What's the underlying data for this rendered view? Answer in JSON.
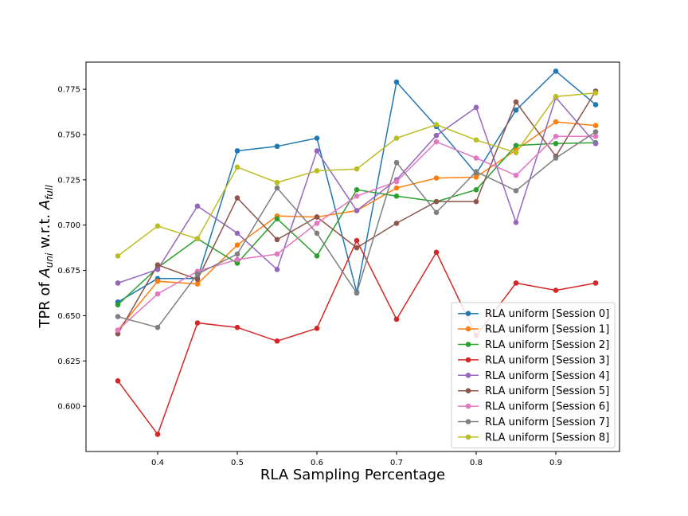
{
  "chart_data": {
    "type": "line",
    "xlabel": "RLA Sampling Percentage",
    "ylabel_prefix": "TPR of ",
    "ylabel_a1": "A",
    "ylabel_s1": "uni",
    "ylabel_mid": " w.r.t. ",
    "ylabel_a2": "A",
    "ylabel_s2": "full",
    "xlim": [
      0.31,
      0.98
    ],
    "ylim": [
      0.575,
      0.79
    ],
    "xticks": [
      0.4,
      0.5,
      0.6,
      0.7,
      0.8,
      0.9
    ],
    "xtick_labels": [
      "0.4",
      "0.5",
      "0.6",
      "0.7",
      "0.8",
      "0.9"
    ],
    "yticks": [
      0.6,
      0.625,
      0.65,
      0.675,
      0.7,
      0.725,
      0.75,
      0.775
    ],
    "ytick_labels": [
      "0.600",
      "0.625",
      "0.650",
      "0.675",
      "0.700",
      "0.725",
      "0.750",
      "0.775"
    ],
    "legend_position": "lower-right",
    "x": [
      0.35,
      0.4,
      0.45,
      0.5,
      0.55,
      0.6,
      0.65,
      0.7,
      0.75,
      0.8,
      0.85,
      0.9,
      0.95
    ],
    "series": [
      {
        "name": "RLA uniform [Session 0]",
        "color": "#1f77b4",
        "values": [
          0.6575,
          0.6705,
          0.6705,
          0.741,
          0.7435,
          0.748,
          0.663,
          0.779,
          0.7545,
          0.7285,
          0.7635,
          0.785,
          0.7665
        ]
      },
      {
        "name": "RLA uniform [Session 1]",
        "color": "#ff7f0e",
        "values": [
          0.642,
          0.669,
          0.6675,
          0.689,
          0.705,
          0.7045,
          0.708,
          0.7205,
          0.726,
          0.7265,
          0.7415,
          0.757,
          0.755
        ]
      },
      {
        "name": "RLA uniform [Session 2]",
        "color": "#2ca02c",
        "values": [
          0.656,
          0.6765,
          0.6925,
          0.679,
          0.7035,
          0.683,
          0.7195,
          0.716,
          0.713,
          0.7195,
          0.744,
          0.745,
          0.7455
        ]
      },
      {
        "name": "RLA uniform [Session 3]",
        "color": "#d62728",
        "values": [
          0.614,
          0.5845,
          0.646,
          0.6435,
          0.636,
          0.643,
          0.6915,
          0.648,
          0.685,
          0.639,
          0.668,
          0.664,
          0.668
        ]
      },
      {
        "name": "RLA uniform [Session 4]",
        "color": "#9467bd",
        "values": [
          0.668,
          0.6755,
          0.7105,
          0.6955,
          0.6755,
          0.741,
          0.708,
          0.725,
          0.7495,
          0.765,
          0.7015,
          0.7705,
          0.745
        ]
      },
      {
        "name": "RLA uniform [Session 5]",
        "color": "#8c564b",
        "values": [
          0.64,
          0.678,
          0.67,
          0.715,
          0.692,
          0.7045,
          0.6875,
          0.701,
          0.713,
          0.713,
          0.768,
          0.738,
          0.774
        ]
      },
      {
        "name": "RLA uniform [Session 6]",
        "color": "#e377c2",
        "values": [
          0.642,
          0.662,
          0.6745,
          0.681,
          0.684,
          0.701,
          0.716,
          0.724,
          0.746,
          0.737,
          0.7275,
          0.749,
          0.749
        ]
      },
      {
        "name": "RLA uniform [Session 7]",
        "color": "#7f7f7f",
        "values": [
          0.6495,
          0.6435,
          0.673,
          0.684,
          0.7205,
          0.6955,
          0.6625,
          0.7345,
          0.707,
          0.7295,
          0.719,
          0.737,
          0.7515
        ]
      },
      {
        "name": "RLA uniform [Session 8]",
        "color": "#bcbd22",
        "values": [
          0.683,
          0.6995,
          0.6925,
          0.732,
          0.7235,
          0.73,
          0.731,
          0.748,
          0.7555,
          0.747,
          0.74,
          0.771,
          0.773
        ]
      }
    ]
  }
}
